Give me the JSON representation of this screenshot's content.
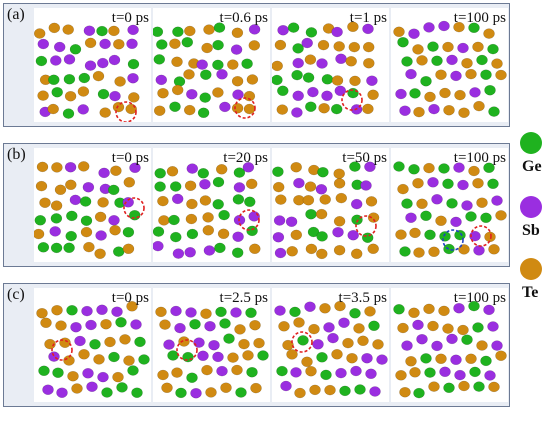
{
  "rows": [
    {
      "label": "(a)",
      "times": [
        "t=0 ps",
        "t=0.6 ps",
        "t=1 ps",
        "t=100 ps"
      ]
    },
    {
      "label": "(b)",
      "times": [
        "t=0 ps",
        "t=20 ps",
        "t=50 ps",
        "t=100 ps"
      ]
    },
    {
      "label": "(c)",
      "times": [
        "t=0 ps",
        "t=2.5 ps",
        "t=3.5 ps",
        "t=100 ps"
      ]
    }
  ],
  "legend": [
    {
      "label": "Ge",
      "color": "#1fb21f"
    },
    {
      "label": "Sb",
      "color": "#9a2ee0"
    },
    {
      "label": "Te",
      "color": "#d08a12"
    }
  ],
  "colors": {
    "Ge": "#1fb21f",
    "Sb": "#9a2ee0",
    "Te": "#d08a12",
    "highlight_red": "#e02020",
    "highlight_blue": "#2040c0",
    "frame": "#6c7a94"
  }
}
